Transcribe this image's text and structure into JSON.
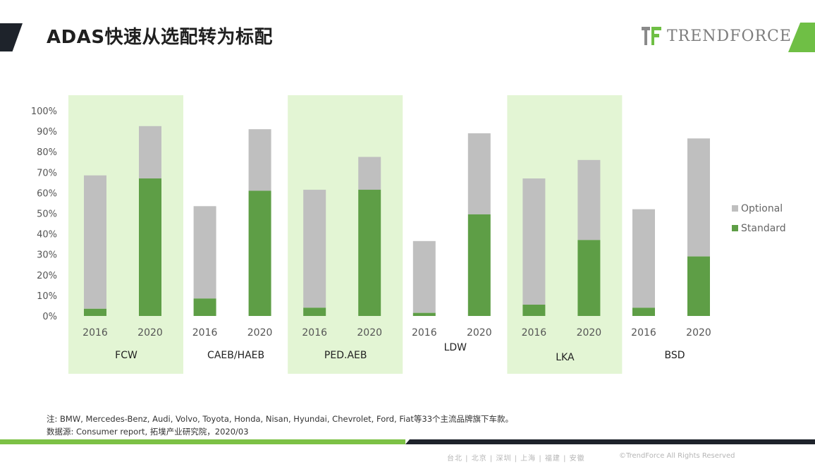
{
  "header": {
    "title": "ADAS快速从选配转为标配",
    "brand": "TRENDFORCE"
  },
  "chart_data": {
    "type": "bar",
    "stacked": true,
    "groups": [
      "FCW",
      "CAEB/HAEB",
      "PED.AEB",
      "LDW",
      "LKA",
      "BSD"
    ],
    "categories": [
      "2016",
      "2020"
    ],
    "series": [
      {
        "name": "Standard",
        "color": "#5e9e46",
        "values": [
          [
            3.5,
            67
          ],
          [
            8.5,
            61
          ],
          [
            4,
            61.5
          ],
          [
            1.5,
            49.5
          ],
          [
            5.5,
            37
          ],
          [
            4,
            29
          ]
        ]
      },
      {
        "name": "Optional",
        "color": "#bfbfbf",
        "values": [
          [
            65,
            25.5
          ],
          [
            45,
            30
          ],
          [
            57.5,
            16
          ],
          [
            35,
            39.5
          ],
          [
            61.5,
            39
          ],
          [
            48,
            57.5
          ]
        ]
      }
    ],
    "highlighted_groups": [
      "FCW",
      "PED.AEB",
      "LKA"
    ],
    "highlight_color": "#e3f5d4",
    "y_ticks": [
      "0%",
      "10%",
      "20%",
      "30%",
      "40%",
      "50%",
      "60%",
      "70%",
      "80%",
      "90%",
      "100%"
    ],
    "ylim": [
      0,
      100
    ],
    "legend_position": "right",
    "grid": false
  },
  "notes": {
    "line1": "注: BMW, Mercedes-Benz, Audi, Volvo, Toyota, Honda, Nisan, Hyundai, Chevrolet, Ford, Fiat等33个主流品牌旗下车款。",
    "line2": "数据源: Consumer report, 拓墣产业研究院，2020/03"
  },
  "footer": {
    "cities": "台北 | 北京 | 深圳 | 上海 | 福建 | 安徽",
    "copyright": "©TrendForce All Rights Reserved"
  }
}
